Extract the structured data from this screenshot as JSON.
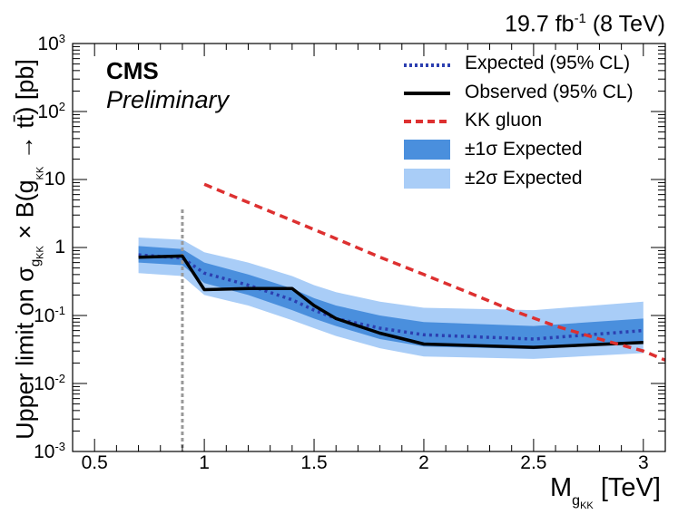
{
  "chart_data": {
    "type": "line",
    "lumi_label": "19.7 fb",
    "lumi_sup": "-1",
    "lumi_energy": "(8 TeV)",
    "experiment": "CMS",
    "status": "Preliminary",
    "xlabel": {
      "main": "M",
      "sub": "g",
      "subsub": "KK",
      "unit": "[TeV]"
    },
    "ylabel": {
      "pre": "Upper limit on σ",
      "sub": "g",
      "subsub": "KK",
      "post": " × B(g",
      "sub2": "KK",
      "post2": " → tt̄) [pb]"
    },
    "x_range": [
      0.4,
      3.1
    ],
    "y_range_log10": [
      -3,
      3
    ],
    "x_ticks": [
      {
        "value": 0.5,
        "label": "0.5"
      },
      {
        "value": 1,
        "label": "1"
      },
      {
        "value": 1.5,
        "label": "1.5"
      },
      {
        "value": 2,
        "label": "2"
      },
      {
        "value": 2.5,
        "label": "2.5"
      },
      {
        "value": 3,
        "label": "3"
      }
    ],
    "y_ticks": [
      {
        "exp": -3,
        "label_base": "10",
        "label_sup": "-3"
      },
      {
        "exp": -2,
        "label_base": "10",
        "label_sup": "-2"
      },
      {
        "exp": -1,
        "label_base": "10",
        "label_sup": "-1"
      },
      {
        "exp": 0,
        "label_base": "1",
        "label_sup": ""
      },
      {
        "exp": 1,
        "label_base": "10",
        "label_sup": ""
      },
      {
        "exp": 2,
        "label_base": "10",
        "label_sup": "2"
      },
      {
        "exp": 3,
        "label_base": "10",
        "label_sup": "3"
      }
    ],
    "mass_points": [
      0.7,
      0.9,
      1.0,
      1.2,
      1.4,
      1.5,
      1.6,
      1.8,
      2.0,
      2.5,
      3.0
    ],
    "expected": [
      0.78,
      0.7,
      0.42,
      0.28,
      0.17,
      0.12,
      0.09,
      0.065,
      0.052,
      0.045,
      0.06
    ],
    "observed": [
      0.72,
      0.75,
      0.24,
      0.25,
      0.25,
      0.14,
      0.09,
      0.055,
      0.038,
      0.034,
      0.04
    ],
    "band_1sigma_low": [
      0.6,
      0.55,
      0.3,
      0.2,
      0.12,
      0.09,
      0.07,
      0.045,
      0.035,
      0.032,
      0.04
    ],
    "band_1sigma_high": [
      1.05,
      0.95,
      0.6,
      0.4,
      0.25,
      0.18,
      0.14,
      0.1,
      0.08,
      0.07,
      0.09
    ],
    "band_2sigma_low": [
      0.42,
      0.38,
      0.2,
      0.14,
      0.085,
      0.065,
      0.05,
      0.033,
      0.025,
      0.023,
      0.028
    ],
    "band_2sigma_high": [
      1.4,
      1.3,
      0.85,
      0.6,
      0.38,
      0.28,
      0.22,
      0.16,
      0.13,
      0.12,
      0.16
    ],
    "kk_gluon": {
      "x": [
        1.0,
        1.2,
        1.4,
        1.6,
        1.8,
        2.0,
        2.2,
        2.4,
        2.6,
        2.8,
        3.0,
        3.1
      ],
      "y": [
        8.5,
        4.6,
        2.5,
        1.35,
        0.72,
        0.4,
        0.22,
        0.12,
        0.07,
        0.045,
        0.03,
        0.022
      ]
    },
    "vline_x": 0.9,
    "legend": [
      {
        "label": "Expected (95% CL)",
        "style": "dotted-blue"
      },
      {
        "label": "Observed (95% CL)",
        "style": "solid-black"
      },
      {
        "label": "KK gluon",
        "style": "dashed-red"
      },
      {
        "label": "±1σ Expected",
        "style": "band-1sigma"
      },
      {
        "label": "±2σ Expected",
        "style": "band-2sigma"
      }
    ],
    "colors": {
      "expected": "#2c3fb0",
      "observed": "#000000",
      "kk": "#dd3030",
      "band1": "#4a8fdd",
      "band2": "#a9cdf7",
      "vline": "#999999"
    }
  }
}
